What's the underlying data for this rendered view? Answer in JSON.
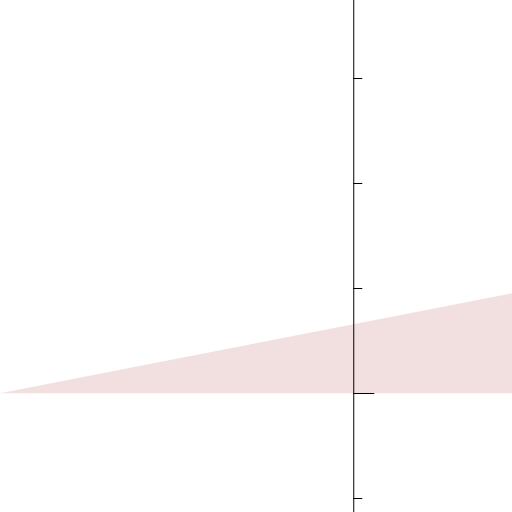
{
  "chart_data": {
    "type": "area",
    "x": [
      -3.36,
      1.51
    ],
    "values": [
      0,
      0.95
    ],
    "color": "#f2e0e0",
    "xlim": [
      -3.36,
      1.51
    ],
    "ylim": [
      -1.13,
      3.74
    ],
    "yticks": [
      -1,
      0,
      1,
      2,
      3
    ]
  }
}
